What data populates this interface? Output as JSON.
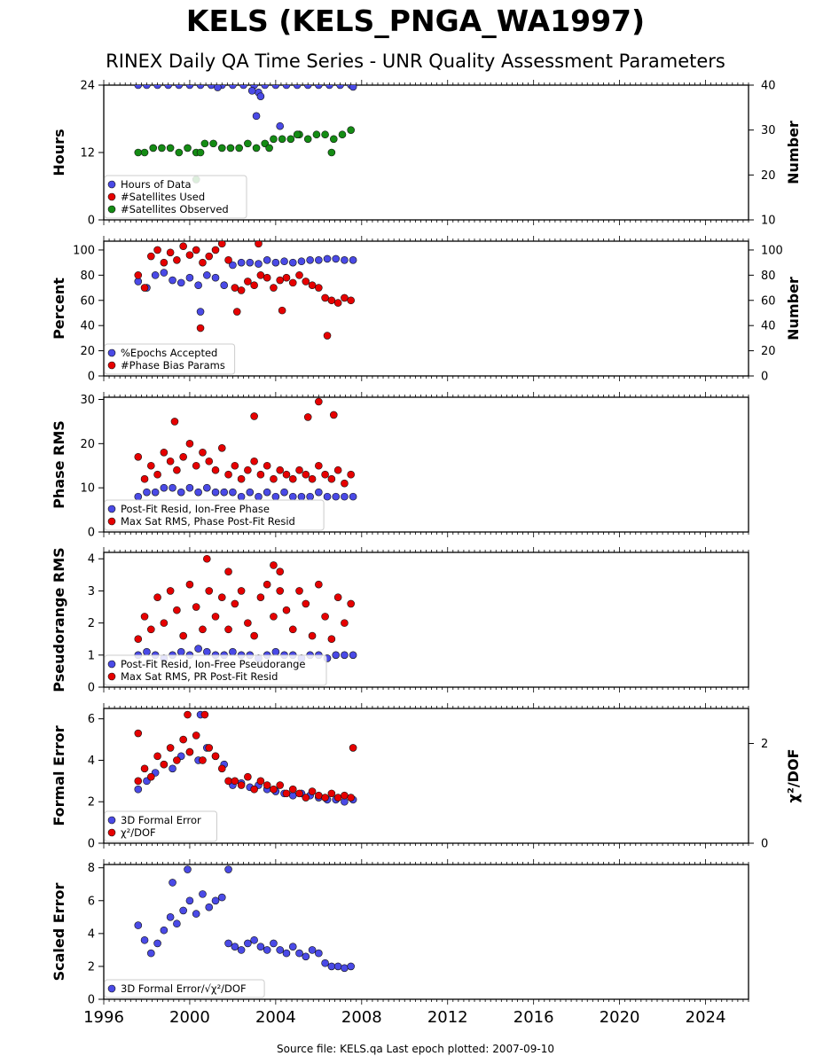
{
  "title": "KELS (KELS_PNGA_WA1997)",
  "subtitle": "RINEX Daily QA Time Series - UNR Quality Assessment Parameters",
  "footer": "Source file: KELS.qa Last epoch plotted: 2007-09-10",
  "colors": {
    "blue": "#4a4ae6",
    "red": "#e60000",
    "green": "#148c14"
  },
  "chart_data": [
    {
      "type": "scatter",
      "ylabel": "Hours",
      "ylim": [
        0,
        24
      ],
      "yticks": [
        "0",
        "12",
        "24"
      ],
      "ylabel_right": "Number",
      "ylim_right": [
        10,
        40
      ],
      "yticks_right": [
        "10",
        "20",
        "30",
        "40"
      ],
      "xlim": [
        1996,
        2026
      ],
      "legend": "lower-left",
      "series": [
        {
          "name": "Hours of Data",
          "color": "blue",
          "axis": "left",
          "x": [
            1997.6,
            1998.0,
            1998.5,
            1999.0,
            1999.5,
            2000.0,
            2000.5,
            2001.0,
            2001.5,
            2002.0,
            2002.5,
            2003.0,
            2003.5,
            2004.0,
            2004.5,
            2005.0,
            2005.5,
            2006.0,
            2006.5,
            2007.0,
            2007.5,
            2003.1,
            2003.2,
            2003.3,
            2004.2,
            2002.9,
            2001.3,
            2007.6
          ],
          "y": [
            24,
            24,
            24,
            24,
            24,
            24,
            24,
            24,
            24,
            24,
            24,
            24,
            24,
            24,
            24,
            24,
            24,
            24,
            24,
            24,
            24,
            18.5,
            22.7,
            22.0,
            16.7,
            23.0,
            23.6,
            23.7
          ]
        },
        {
          "name": "#Satellites Used",
          "color": "red",
          "axis": "right",
          "x": [],
          "y": []
        },
        {
          "name": "#Satellites Observed",
          "color": "green",
          "axis": "right",
          "x": [
            1997.6,
            1997.9,
            1998.3,
            1998.7,
            1999.1,
            1999.5,
            1999.9,
            2000.3,
            2000.7,
            2001.1,
            2001.5,
            2001.9,
            2002.3,
            2002.7,
            2003.1,
            2003.5,
            2003.9,
            2004.3,
            2004.7,
            2005.1,
            2005.5,
            2005.9,
            2006.3,
            2006.7,
            2007.1,
            2007.5,
            2000.5,
            2000.3,
            2005.0,
            2003.7,
            2006.6
          ],
          "y": [
            25,
            25,
            26,
            26,
            26,
            25,
            26,
            25,
            27,
            27,
            26,
            26,
            26,
            27,
            26,
            27,
            28,
            28,
            28,
            29,
            28,
            29,
            29,
            28,
            29,
            30,
            25,
            19,
            29,
            26,
            25
          ]
        }
      ]
    },
    {
      "type": "scatter",
      "ylabel": "Percent",
      "ylim": [
        0,
        107
      ],
      "yticks": [
        "0",
        "20",
        "40",
        "60",
        "80",
        "100"
      ],
      "ylabel_right": "Number",
      "ylim_right": [
        0,
        107
      ],
      "yticks_right": [
        "0",
        "20",
        "40",
        "60",
        "80",
        "100"
      ],
      "xlim": [
        1996,
        2026
      ],
      "legend": "lower-left",
      "series": [
        {
          "name": "%Epochs Accepted",
          "color": "blue",
          "axis": "left",
          "x": [
            1997.6,
            1998.0,
            1998.4,
            1998.8,
            1999.2,
            1999.6,
            2000.0,
            2000.4,
            2000.8,
            2001.2,
            2001.6,
            2002.0,
            2002.4,
            2002.8,
            2003.2,
            2003.6,
            2004.0,
            2004.4,
            2004.8,
            2005.2,
            2005.6,
            2006.0,
            2006.4,
            2006.8,
            2007.2,
            2007.6,
            2000.5
          ],
          "y": [
            75,
            70,
            80,
            82,
            76,
            74,
            78,
            72,
            80,
            78,
            72,
            88,
            90,
            90,
            89,
            92,
            90,
            91,
            90,
            91,
            92,
            92,
            93,
            93,
            92,
            92,
            51
          ]
        },
        {
          "name": "#Phase Bias Params",
          "color": "red",
          "axis": "right",
          "x": [
            1997.6,
            1997.9,
            1998.2,
            1998.5,
            1998.8,
            1999.1,
            1999.4,
            1999.7,
            2000.0,
            2000.3,
            2000.6,
            2000.9,
            2001.2,
            2001.5,
            2001.8,
            2002.1,
            2002.4,
            2002.7,
            2003.0,
            2003.3,
            2003.6,
            2003.9,
            2004.2,
            2004.5,
            2004.8,
            2005.1,
            2005.4,
            2005.7,
            2006.0,
            2006.3,
            2006.6,
            2006.9,
            2007.2,
            2007.5,
            2000.5,
            2003.2,
            2006.4,
            2002.2,
            2004.3
          ],
          "y": [
            80,
            70,
            95,
            100,
            90,
            98,
            92,
            103,
            96,
            100,
            90,
            95,
            100,
            105,
            92,
            70,
            68,
            75,
            72,
            80,
            78,
            70,
            76,
            78,
            74,
            80,
            75,
            72,
            70,
            62,
            60,
            58,
            62,
            60,
            38,
            105,
            32,
            51,
            52
          ]
        }
      ]
    },
    {
      "type": "scatter",
      "ylabel": "Phase RMS",
      "ylim": [
        0,
        30.5
      ],
      "yticks": [
        "0",
        "10",
        "20",
        "30"
      ],
      "xlim": [
        1996,
        2026
      ],
      "legend": "lower-left",
      "series": [
        {
          "name": "Post-Fit Resid, Ion-Free Phase",
          "color": "blue",
          "x": [
            1997.6,
            1998.0,
            1998.4,
            1998.8,
            1999.2,
            1999.6,
            2000.0,
            2000.4,
            2000.8,
            2001.2,
            2001.6,
            2002.0,
            2002.4,
            2002.8,
            2003.2,
            2003.6,
            2004.0,
            2004.4,
            2004.8,
            2005.2,
            2005.6,
            2006.0,
            2006.4,
            2006.8,
            2007.2,
            2007.6
          ],
          "y": [
            8,
            9,
            9,
            10,
            10,
            9,
            10,
            9,
            10,
            9,
            9,
            9,
            8,
            9,
            8,
            9,
            8,
            9,
            8,
            8,
            8,
            9,
            8,
            8,
            8,
            8
          ]
        },
        {
          "name": "Max Sat RMS, Phase Post-Fit Resid",
          "color": "red",
          "x": [
            1997.6,
            1997.9,
            1998.2,
            1998.5,
            1998.8,
            1999.1,
            1999.4,
            1999.7,
            2000.0,
            2000.3,
            2000.6,
            2000.9,
            2001.2,
            2001.5,
            2001.8,
            2002.1,
            2002.4,
            2002.7,
            2003.0,
            2003.3,
            2003.6,
            2003.9,
            2004.2,
            2004.5,
            2004.8,
            2005.1,
            2005.4,
            2005.7,
            2006.0,
            2006.3,
            2006.6,
            2006.9,
            2007.2,
            2007.5,
            2006.0,
            2006.7,
            2005.5,
            2003.0,
            1999.3
          ],
          "y": [
            17,
            12,
            15,
            13,
            18,
            16,
            14,
            17,
            20,
            15,
            18,
            16,
            14,
            19,
            13,
            15,
            12,
            14,
            16,
            13,
            15,
            12,
            14,
            13,
            12,
            14,
            13,
            12,
            15,
            13,
            12,
            14,
            11,
            13,
            29.5,
            26.5,
            26,
            26.2,
            25
          ]
        }
      ]
    },
    {
      "type": "scatter",
      "ylabel": "Pseudorange RMS",
      "ylim": [
        0,
        4.2
      ],
      "yticks": [
        "0",
        "1",
        "2",
        "3",
        "4"
      ],
      "xlim": [
        1996,
        2026
      ],
      "legend": "lower-left",
      "series": [
        {
          "name": "Post-Fit Resid, Ion-Free Pseudorange",
          "color": "blue",
          "x": [
            1997.6,
            1998.0,
            1998.4,
            1998.8,
            1999.2,
            1999.6,
            2000.0,
            2000.4,
            2000.8,
            2001.2,
            2001.6,
            2002.0,
            2002.4,
            2002.8,
            2003.2,
            2003.6,
            2004.0,
            2004.4,
            2004.8,
            2005.2,
            2005.6,
            2006.0,
            2006.4,
            2006.8,
            2007.2,
            2007.6
          ],
          "y": [
            1.0,
            1.1,
            1.0,
            0.9,
            1.0,
            1.1,
            1.0,
            1.2,
            1.1,
            1.0,
            1.0,
            1.1,
            1.0,
            1.0,
            0.9,
            1.0,
            1.1,
            1.0,
            1.0,
            0.9,
            1.0,
            1.0,
            0.9,
            1.0,
            1.0,
            1.0
          ]
        },
        {
          "name": "Max Sat RMS, PR Post-Fit Resid",
          "color": "red",
          "x": [
            1997.6,
            1997.9,
            1998.2,
            1998.5,
            1998.8,
            1999.1,
            1999.4,
            1999.7,
            2000.0,
            2000.3,
            2000.6,
            2000.9,
            2001.2,
            2001.5,
            2001.8,
            2002.1,
            2002.4,
            2002.7,
            2003.0,
            2003.3,
            2003.6,
            2003.9,
            2004.2,
            2004.5,
            2004.8,
            2005.1,
            2005.4,
            2005.7,
            2006.0,
            2006.3,
            2006.6,
            2006.9,
            2007.2,
            2007.5,
            2000.8,
            2001.8,
            2003.9,
            2004.2
          ],
          "y": [
            1.5,
            2.2,
            1.8,
            2.8,
            2.0,
            3.0,
            2.4,
            1.6,
            3.2,
            2.5,
            1.8,
            3.0,
            2.2,
            2.8,
            1.8,
            2.6,
            3.0,
            2.0,
            1.6,
            2.8,
            3.2,
            2.2,
            3.0,
            2.4,
            1.8,
            3.0,
            2.6,
            1.6,
            3.2,
            2.2,
            1.5,
            2.8,
            2.0,
            2.6,
            4.0,
            3.6,
            3.8,
            3.6
          ]
        }
      ]
    },
    {
      "type": "scatter",
      "ylabel": "Formal Error",
      "ylim": [
        0,
        6.5
      ],
      "yticks": [
        "0",
        "2",
        "4",
        "6"
      ],
      "ylabel_right": "χ²/DOF",
      "yticks_right": [
        "0",
        "2"
      ],
      "xlim": [
        1996,
        2026
      ],
      "legend": "lower-left",
      "series": [
        {
          "name": "3D Formal Error",
          "color": "blue",
          "x": [
            1997.6,
            1998.0,
            1998.4,
            1998.8,
            1999.2,
            1999.6,
            2000.0,
            2000.4,
            2000.8,
            2001.2,
            2001.6,
            2002.0,
            2002.4,
            2002.8,
            2003.2,
            2003.6,
            2004.0,
            2004.4,
            2004.8,
            2005.2,
            2005.6,
            2006.0,
            2006.4,
            2006.8,
            2007.2,
            2007.6,
            2000.5
          ],
          "y": [
            2.6,
            3.0,
            3.4,
            3.8,
            3.6,
            4.2,
            4.4,
            4.0,
            4.6,
            4.2,
            3.8,
            2.8,
            2.9,
            2.7,
            2.8,
            2.6,
            2.5,
            2.4,
            2.3,
            2.4,
            2.3,
            2.2,
            2.1,
            2.1,
            2.0,
            2.1,
            6.2
          ]
        },
        {
          "name": "χ²/DOF",
          "color": "red",
          "x": [
            1997.6,
            1997.9,
            1998.2,
            1998.5,
            1998.8,
            1999.1,
            1999.4,
            1999.7,
            2000.0,
            2000.3,
            2000.6,
            2000.9,
            2001.2,
            2001.5,
            2001.8,
            2002.1,
            2002.4,
            2002.7,
            2003.0,
            2003.3,
            2003.6,
            2003.9,
            2004.2,
            2004.5,
            2004.8,
            2005.1,
            2005.4,
            2005.7,
            2006.0,
            2006.3,
            2006.6,
            2006.9,
            2007.2,
            2007.5,
            1999.9,
            2000.7,
            1997.6,
            2007.6
          ],
          "y": [
            3.0,
            3.6,
            3.2,
            4.2,
            3.8,
            4.6,
            4.0,
            5.0,
            4.4,
            5.2,
            4.0,
            4.6,
            4.2,
            3.6,
            3.0,
            3.0,
            2.8,
            3.2,
            2.6,
            3.0,
            2.8,
            2.6,
            2.8,
            2.4,
            2.6,
            2.4,
            2.2,
            2.5,
            2.3,
            2.2,
            2.4,
            2.2,
            2.3,
            2.2,
            6.2,
            6.2,
            5.3,
            4.6
          ]
        }
      ]
    },
    {
      "type": "scatter",
      "ylabel": "Scaled Error",
      "ylim": [
        0,
        8.2
      ],
      "yticks": [
        "0",
        "2",
        "4",
        "6",
        "8"
      ],
      "xlim": [
        1996,
        2026
      ],
      "xticks": [
        "1996",
        "2000",
        "2004",
        "2008",
        "2012",
        "2016",
        "2020",
        "2024"
      ],
      "legend": "lower-left",
      "series": [
        {
          "name": "3D Formal Error/√χ²/DOF",
          "color": "blue",
          "x": [
            1997.6,
            1997.9,
            1998.2,
            1998.5,
            1998.8,
            1999.1,
            1999.4,
            1999.7,
            2000.0,
            2000.3,
            2000.6,
            2000.9,
            2001.2,
            2001.5,
            2001.8,
            2002.1,
            2002.4,
            2002.7,
            2003.0,
            2003.3,
            2003.6,
            2003.9,
            2004.2,
            2004.5,
            2004.8,
            2005.1,
            2005.4,
            2005.7,
            2006.0,
            2006.3,
            2006.6,
            2006.9,
            2007.2,
            2007.5,
            1999.9,
            2001.8,
            1999.2
          ],
          "y": [
            4.5,
            3.6,
            2.8,
            3.4,
            4.2,
            5.0,
            4.6,
            5.4,
            6.0,
            5.2,
            6.4,
            5.6,
            6.0,
            6.2,
            3.4,
            3.2,
            3.0,
            3.4,
            3.6,
            3.2,
            3.0,
            3.4,
            3.0,
            2.8,
            3.2,
            2.8,
            2.6,
            3.0,
            2.8,
            2.2,
            2.0,
            2.0,
            1.9,
            2.0,
            7.9,
            7.9,
            7.1
          ]
        }
      ]
    }
  ]
}
